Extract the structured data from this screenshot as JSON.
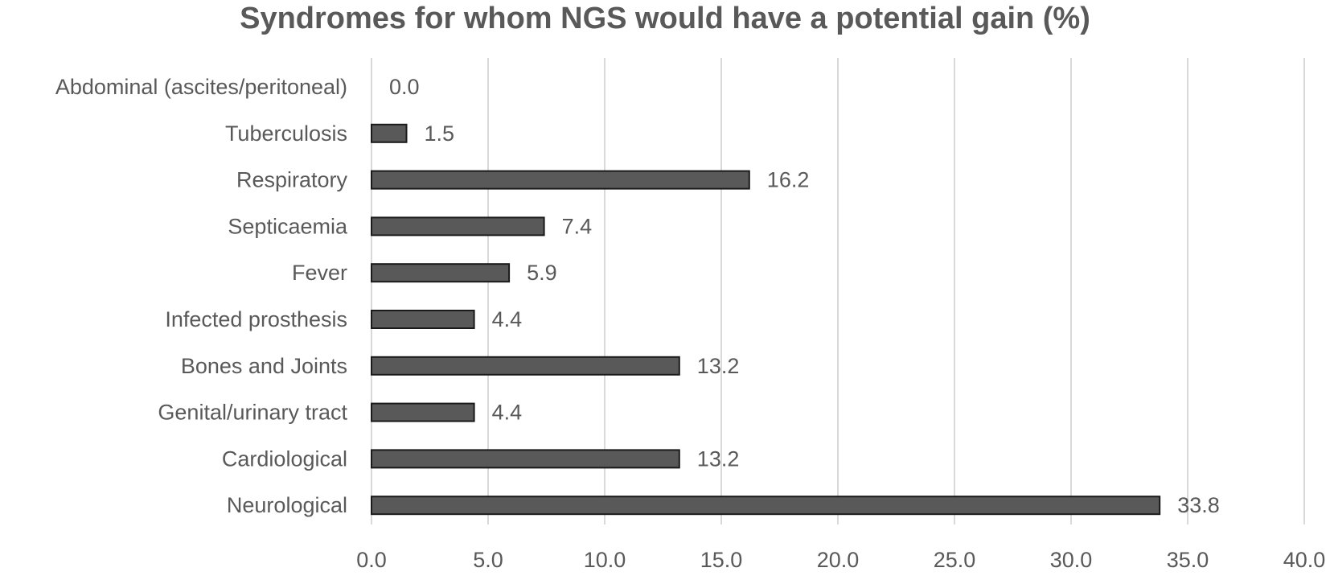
{
  "chart_data": {
    "type": "bar",
    "orientation": "horizontal",
    "title": "Syndromes for whom NGS would have a potential gain (%)",
    "xlabel": "",
    "ylabel": "",
    "categories": [
      "Abdominal (ascites/peritoneal)",
      "Tuberculosis",
      "Respiratory",
      "Septicaemia",
      "Fever",
      "Infected prosthesis",
      "Bones and Joints",
      "Genital/urinary tract",
      "Cardiological",
      "Neurological"
    ],
    "values": [
      0.0,
      1.5,
      16.2,
      7.4,
      5.9,
      4.4,
      13.2,
      4.4,
      13.2,
      33.8
    ],
    "data_labels": [
      "0.0",
      "1.5",
      "16.2",
      "7.4",
      "5.9",
      "4.4",
      "13.2",
      "4.4",
      "13.2",
      "33.8"
    ],
    "xlim": [
      0,
      40
    ],
    "x_ticks": [
      "0.0",
      "5.0",
      "10.0",
      "15.0",
      "20.0",
      "25.0",
      "30.0",
      "35.0",
      "40.0"
    ],
    "grid": "vertical",
    "legend": "none",
    "colors": {
      "bar_fill": "#595959",
      "bar_stroke": "#1a1a1a",
      "gridline": "#d9d9d9",
      "text": "#595959"
    }
  }
}
